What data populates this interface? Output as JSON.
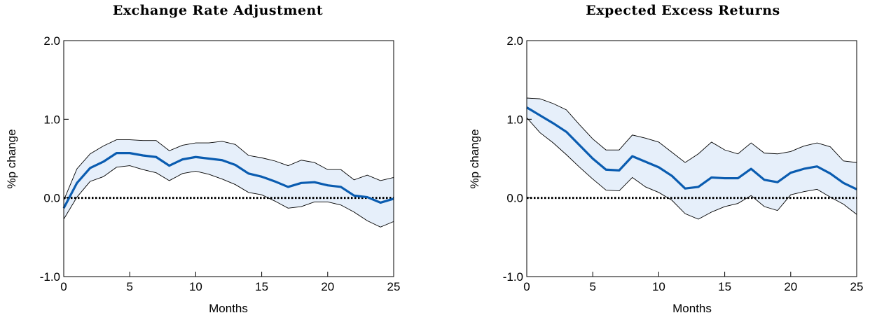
{
  "chart_data": [
    {
      "type": "line",
      "title": "Exchange Rate Adjustment",
      "xlabel": "Months",
      "ylabel": "%p change",
      "xlim": [
        0,
        25
      ],
      "ylim": [
        -1.0,
        2.0
      ],
      "xticks": [
        "0",
        "5",
        "10",
        "15",
        "20",
        "25"
      ],
      "yticks": [
        "-1.0",
        "0.0",
        "1.0",
        "2.0"
      ],
      "grid": false,
      "zero_line": "dotted",
      "x": [
        0,
        1,
        2,
        3,
        4,
        5,
        6,
        7,
        8,
        9,
        10,
        11,
        12,
        13,
        14,
        15,
        16,
        17,
        18,
        19,
        20,
        21,
        22,
        23,
        24,
        25
      ],
      "series": [
        {
          "role": "estimate",
          "color": "#0a5cb0",
          "values": [
            -0.13,
            0.19,
            0.38,
            0.46,
            0.57,
            0.57,
            0.54,
            0.52,
            0.41,
            0.49,
            0.52,
            0.5,
            0.48,
            0.42,
            0.31,
            0.27,
            0.21,
            0.14,
            0.19,
            0.2,
            0.16,
            0.14,
            0.03,
            0.01,
            -0.06,
            -0.01
          ]
        },
        {
          "role": "upper",
          "color": "#000000",
          "values": [
            -0.03,
            0.37,
            0.56,
            0.66,
            0.74,
            0.74,
            0.73,
            0.73,
            0.6,
            0.67,
            0.7,
            0.7,
            0.72,
            0.68,
            0.54,
            0.51,
            0.47,
            0.41,
            0.48,
            0.45,
            0.36,
            0.36,
            0.23,
            0.29,
            0.22,
            0.26
          ]
        },
        {
          "role": "lower",
          "color": "#000000",
          "values": [
            -0.27,
            0.01,
            0.21,
            0.27,
            0.39,
            0.41,
            0.36,
            0.32,
            0.22,
            0.31,
            0.34,
            0.3,
            0.24,
            0.17,
            0.07,
            0.04,
            -0.04,
            -0.13,
            -0.11,
            -0.05,
            -0.05,
            -0.09,
            -0.18,
            -0.29,
            -0.37,
            -0.3
          ]
        }
      ]
    },
    {
      "type": "line",
      "title": "Expected Excess Returns",
      "xlabel": "Months",
      "ylabel": "%p change",
      "xlim": [
        0,
        25
      ],
      "ylim": [
        -1.0,
        2.0
      ],
      "xticks": [
        "0",
        "5",
        "10",
        "15",
        "20",
        "25"
      ],
      "yticks": [
        "-1.0",
        "0.0",
        "1.0",
        "2.0"
      ],
      "grid": false,
      "zero_line": "dotted",
      "x": [
        0,
        1,
        2,
        3,
        4,
        5,
        6,
        7,
        8,
        9,
        10,
        11,
        12,
        13,
        14,
        15,
        16,
        17,
        18,
        19,
        20,
        21,
        22,
        23,
        24,
        25
      ],
      "series": [
        {
          "role": "estimate",
          "color": "#0a5cb0",
          "values": [
            1.15,
            1.05,
            0.95,
            0.84,
            0.67,
            0.5,
            0.36,
            0.35,
            0.53,
            0.46,
            0.39,
            0.28,
            0.12,
            0.14,
            0.26,
            0.25,
            0.25,
            0.37,
            0.23,
            0.2,
            0.32,
            0.37,
            0.4,
            0.31,
            0.19,
            0.11
          ]
        },
        {
          "role": "upper",
          "color": "#000000",
          "values": [
            1.27,
            1.26,
            1.2,
            1.12,
            0.93,
            0.75,
            0.61,
            0.61,
            0.8,
            0.76,
            0.71,
            0.58,
            0.45,
            0.56,
            0.71,
            0.61,
            0.56,
            0.7,
            0.57,
            0.56,
            0.59,
            0.66,
            0.7,
            0.65,
            0.47,
            0.45
          ]
        },
        {
          "role": "lower",
          "color": "#000000",
          "values": [
            1.02,
            0.83,
            0.7,
            0.55,
            0.39,
            0.24,
            0.1,
            0.09,
            0.26,
            0.14,
            0.07,
            -0.03,
            -0.2,
            -0.27,
            -0.18,
            -0.11,
            -0.07,
            0.03,
            -0.11,
            -0.16,
            0.04,
            0.08,
            0.11,
            0.01,
            -0.08,
            -0.21
          ]
        }
      ]
    }
  ],
  "style": {
    "band_fill": "#e6effa",
    "estimate_color": "#0a5cb0",
    "band_edge_color": "#000000",
    "axis_color": "#000000"
  }
}
